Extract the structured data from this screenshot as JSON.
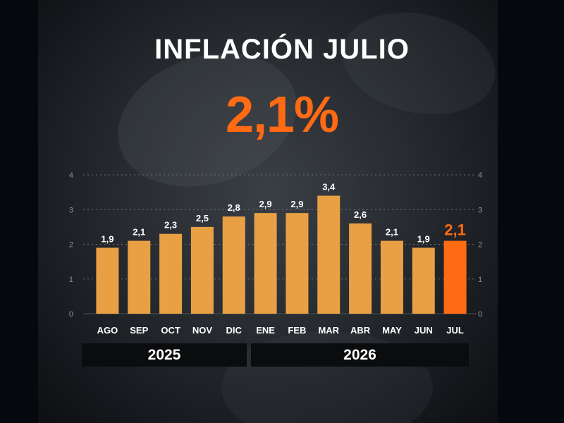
{
  "title": "INFLACIÓN JULIO",
  "headline_value": "2,1%",
  "years": {
    "first": "2025",
    "second": "2026"
  },
  "colors": {
    "bar": "#e9a044",
    "highlight": "#ff6a13",
    "text": "#ffffff",
    "background": "#1e2226"
  },
  "chart_data": {
    "type": "bar",
    "categories": [
      "AGO",
      "SEP",
      "OCT",
      "NOV",
      "DIC",
      "ENE",
      "FEB",
      "MAR",
      "ABR",
      "MAY",
      "JUN",
      "JUL"
    ],
    "values": [
      1.9,
      2.1,
      2.3,
      2.5,
      2.8,
      2.9,
      2.9,
      3.4,
      2.6,
      2.1,
      1.9,
      2.1
    ],
    "data_labels": [
      "1,9",
      "2,1",
      "2,3",
      "2,5",
      "2,8",
      "2,9",
      "2,9",
      "3,4",
      "2,6",
      "2,1",
      "1,9",
      "2,1"
    ],
    "highlight_index": 11,
    "ylim": [
      0,
      4
    ],
    "yticks": [
      "0",
      "1",
      "2",
      "3",
      "4"
    ],
    "grid": true,
    "gridlines_dotted": true,
    "y_axis_both_sides": true,
    "title": "",
    "xlabel": "",
    "ylabel": ""
  }
}
